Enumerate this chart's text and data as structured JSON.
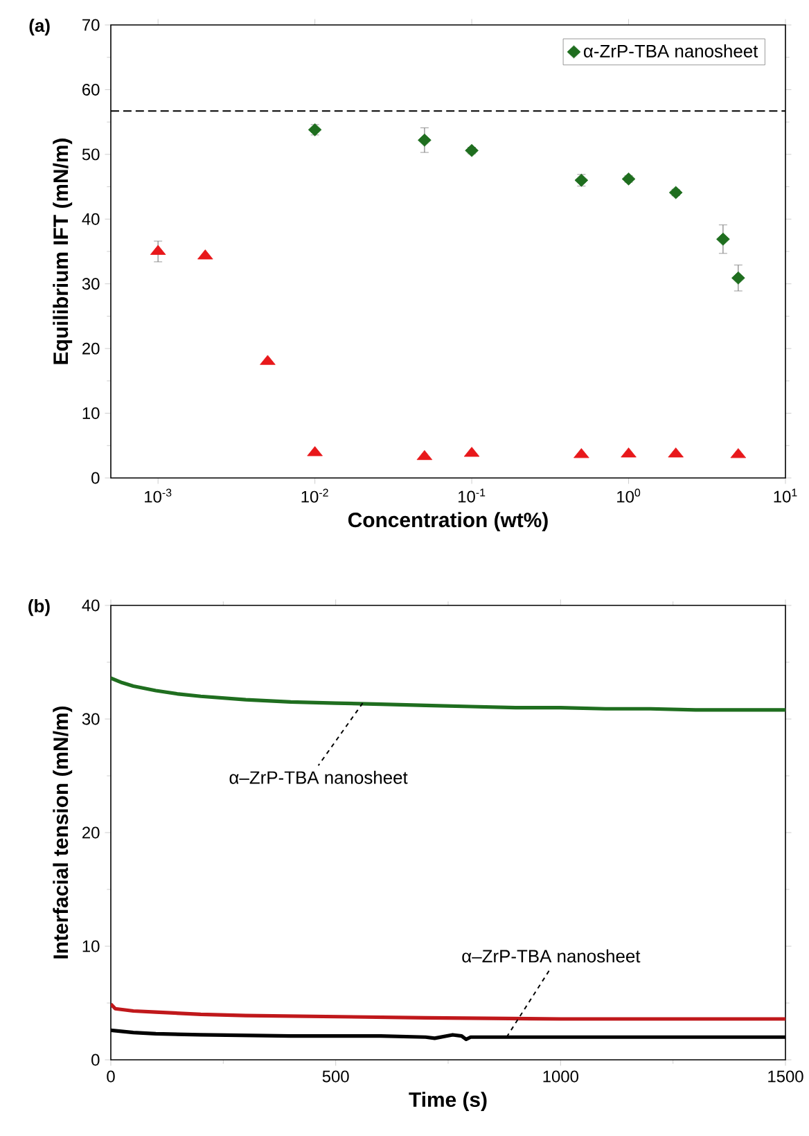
{
  "chart_data": [
    {
      "type": "scatter",
      "title": "(a)",
      "xlabel": "Concentration (wt%)",
      "ylabel": "Equilibrium IFT (mN/m)",
      "log": "x",
      "xlim": [
        0.0005,
        10
      ],
      "xticks": [
        {
          "value": 0.001,
          "label": "10$^{-3}$"
        },
        {
          "value": 0.01,
          "label": "10$^{-2}$"
        },
        {
          "value": 0.1,
          "label": "10$^{-1}$"
        },
        {
          "value": 1,
          "label": "10$^{0}$"
        },
        {
          "value": 10,
          "label": "10$^{1}$"
        }
      ],
      "ylim": [
        0,
        70
      ],
      "yticks": [
        0,
        10,
        20,
        30,
        40,
        50,
        60,
        70
      ],
      "legend": "top right",
      "ref_lines": [
        {
          "axis": "y",
          "value": 56.7,
          "line_style": "dashed",
          "color": "#000000"
        }
      ],
      "series": [
        {
          "name": "α-ZrP-TBA nanosheet",
          "color": "#1f6e1f",
          "marker": "diamond",
          "x": [
            0.01,
            0.05,
            0.1,
            0.5,
            1,
            2,
            4,
            5
          ],
          "values": [
            53.8,
            52.2,
            50.6,
            46.0,
            46.2,
            44.1,
            36.9,
            30.9
          ],
          "errors": [
            0.8,
            1.9,
            0.5,
            0.9,
            0.5,
            0.5,
            2.2,
            2.0
          ]
        },
        {
          "color": "#e8181b",
          "marker": "triangle",
          "x": [
            0.001,
            0.002,
            0.005,
            0.01,
            0.05,
            0.1,
            0.5,
            1,
            2,
            5
          ],
          "values": [
            35.0,
            34.3,
            18.0,
            3.9,
            3.3,
            3.8,
            3.6,
            3.7,
            3.7,
            3.6
          ],
          "errors": [
            1.6,
            null,
            null,
            null,
            null,
            null,
            null,
            null,
            null,
            null
          ]
        }
      ]
    },
    {
      "type": "line",
      "title": "(b)",
      "xlabel": "Time (s)",
      "ylabel": "Interfacial tension (mN/m)",
      "xlim": [
        0,
        1500
      ],
      "xticks": [
        0,
        500,
        1000,
        1500
      ],
      "ylim": [
        0,
        40
      ],
      "yticks": [
        0,
        10,
        20,
        30,
        40
      ],
      "annotations": [
        {
          "text": "α–ZrP-TBA nanosheet",
          "x": 560,
          "y": 31.4
        },
        {
          "text": "α–ZrP-TBA nanosheet",
          "x": 880,
          "y": 2.0
        }
      ],
      "series": [
        {
          "color": "#1f6e1f",
          "x": [
            0,
            25,
            50,
            100,
            150,
            200,
            300,
            400,
            500,
            600,
            700,
            800,
            900,
            1000,
            1100,
            1200,
            1300,
            1400,
            1500
          ],
          "values": [
            33.6,
            33.2,
            32.9,
            32.5,
            32.2,
            32.0,
            31.7,
            31.5,
            31.4,
            31.3,
            31.2,
            31.1,
            31.0,
            31.0,
            30.9,
            30.9,
            30.8,
            30.8,
            30.8
          ]
        },
        {
          "color": "#c0181b",
          "x": [
            0,
            10,
            50,
            100,
            200,
            300,
            500,
            700,
            1000,
            1500
          ],
          "values": [
            4.9,
            4.5,
            4.3,
            4.2,
            4.0,
            3.9,
            3.8,
            3.7,
            3.6,
            3.6
          ]
        },
        {
          "color": "#000000",
          "x": [
            0,
            50,
            100,
            200,
            400,
            600,
            700,
            720,
            760,
            780,
            790,
            800,
            1000,
            1500
          ],
          "values": [
            2.6,
            2.4,
            2.3,
            2.2,
            2.1,
            2.1,
            2.0,
            1.9,
            2.2,
            2.1,
            1.8,
            2.0,
            2.0,
            2.0
          ]
        }
      ]
    }
  ]
}
